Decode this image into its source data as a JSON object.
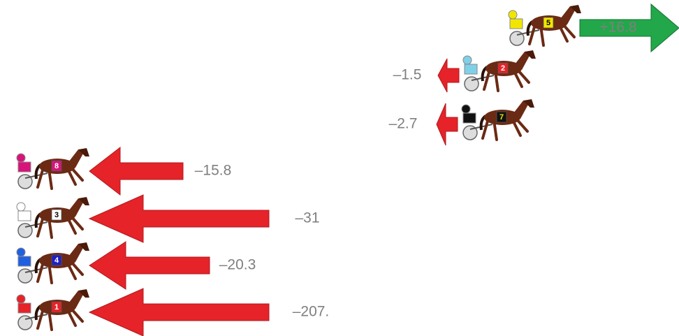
{
  "horses": [
    {
      "number": "5",
      "change": "+16.8"
    },
    {
      "number": "2",
      "change": "–1.5"
    },
    {
      "number": "7",
      "change": "–2.7"
    },
    {
      "number": "8",
      "change": "–15.8"
    },
    {
      "number": "3",
      "change": "–31"
    },
    {
      "number": "4",
      "change": "–20.3"
    },
    {
      "number": "1",
      "change": "–207."
    }
  ]
}
